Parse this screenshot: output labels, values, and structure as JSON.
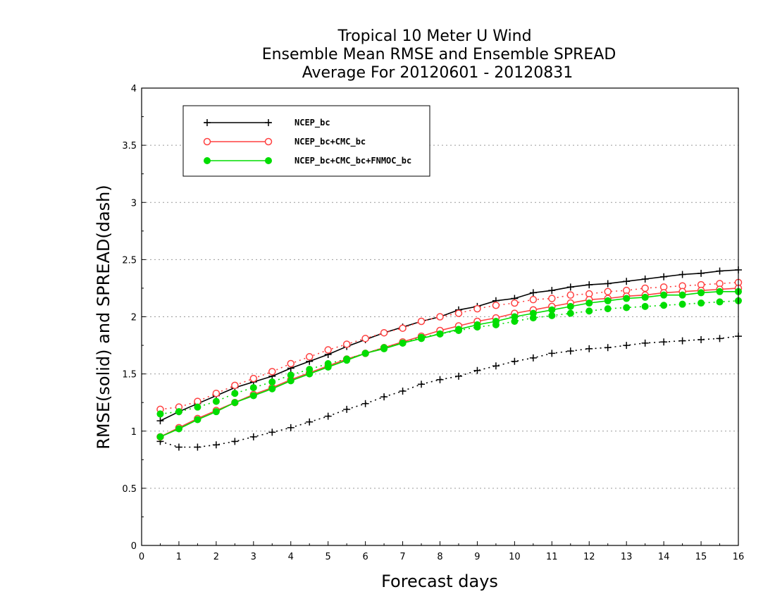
{
  "chart_data": {
    "type": "line",
    "title_lines": [
      "Tropical 10 Meter U Wind",
      "Ensemble Mean RMSE and Ensemble SPREAD",
      "Average For 20120601 - 20120831"
    ],
    "xlabel": "Forecast days",
    "ylabel": "RMSE(solid) and SPREAD(dash)",
    "xlim": [
      0,
      16
    ],
    "ylim": [
      0,
      4
    ],
    "x_ticks": [
      "0",
      "1",
      "2",
      "3",
      "4",
      "5",
      "6",
      "7",
      "8",
      "9",
      "10",
      "11",
      "12",
      "13",
      "14",
      "15",
      "16"
    ],
    "y_ticks": [
      "0",
      "0.5",
      "1",
      "1.5",
      "2",
      "2.5",
      "3",
      "3.5",
      "4"
    ],
    "grid": "horizontal dotted",
    "legend_position": "top-left",
    "x": [
      0.5,
      1,
      1.5,
      2,
      2.5,
      3,
      3.5,
      4,
      4.5,
      5,
      5.5,
      6,
      6.5,
      7,
      7.5,
      8,
      8.5,
      9,
      9.5,
      10,
      10.5,
      11,
      11.5,
      12,
      12.5,
      13,
      13.5,
      14,
      14.5,
      15,
      15.5,
      16
    ],
    "series": [
      {
        "name": "NCEP_bc",
        "color": "#000000",
        "marker": "plus",
        "rmse": [
          1.09,
          1.17,
          1.24,
          1.31,
          1.38,
          1.43,
          1.48,
          1.55,
          1.61,
          1.67,
          1.74,
          1.8,
          1.86,
          1.91,
          1.96,
          2.0,
          2.06,
          2.09,
          2.14,
          2.16,
          2.21,
          2.23,
          2.26,
          2.28,
          2.29,
          2.31,
          2.33,
          2.35,
          2.37,
          2.38,
          2.4,
          2.41
        ],
        "spread": [
          0.91,
          0.86,
          0.86,
          0.88,
          0.91,
          0.95,
          0.99,
          1.03,
          1.08,
          1.13,
          1.19,
          1.24,
          1.3,
          1.35,
          1.41,
          1.45,
          1.48,
          1.53,
          1.57,
          1.61,
          1.64,
          1.68,
          1.7,
          1.72,
          1.73,
          1.75,
          1.77,
          1.78,
          1.79,
          1.8,
          1.81,
          1.83
        ]
      },
      {
        "name": "NCEP_bc+CMC_bc",
        "color": "#ff4040",
        "marker": "open-circle",
        "rmse": [
          0.95,
          1.03,
          1.11,
          1.18,
          1.25,
          1.32,
          1.38,
          1.45,
          1.51,
          1.57,
          1.63,
          1.68,
          1.73,
          1.78,
          1.83,
          1.88,
          1.92,
          1.96,
          1.99,
          2.03,
          2.06,
          2.09,
          2.12,
          2.15,
          2.16,
          2.18,
          2.19,
          2.21,
          2.22,
          2.23,
          2.24,
          2.25
        ],
        "spread": [
          1.19,
          1.21,
          1.26,
          1.33,
          1.4,
          1.46,
          1.52,
          1.59,
          1.65,
          1.71,
          1.76,
          1.81,
          1.86,
          1.9,
          1.96,
          2.0,
          2.03,
          2.07,
          2.1,
          2.12,
          2.15,
          2.16,
          2.19,
          2.2,
          2.22,
          2.23,
          2.25,
          2.26,
          2.27,
          2.28,
          2.29,
          2.3
        ]
      },
      {
        "name": "NCEP_bc+CMC_bc+FNMOC_bc",
        "color": "#00dd00",
        "marker": "filled-circle",
        "rmse": [
          0.95,
          1.02,
          1.1,
          1.17,
          1.25,
          1.31,
          1.37,
          1.44,
          1.5,
          1.56,
          1.62,
          1.68,
          1.72,
          1.77,
          1.81,
          1.85,
          1.89,
          1.93,
          1.96,
          2.0,
          2.03,
          2.06,
          2.09,
          2.12,
          2.14,
          2.16,
          2.17,
          2.19,
          2.19,
          2.21,
          2.22,
          2.22
        ],
        "spread": [
          1.15,
          1.17,
          1.21,
          1.26,
          1.33,
          1.38,
          1.43,
          1.49,
          1.54,
          1.59,
          1.63,
          1.68,
          1.73,
          1.77,
          1.82,
          1.85,
          1.88,
          1.91,
          1.93,
          1.96,
          1.99,
          2.01,
          2.03,
          2.05,
          2.07,
          2.08,
          2.09,
          2.1,
          2.11,
          2.12,
          2.13,
          2.14
        ]
      }
    ]
  }
}
